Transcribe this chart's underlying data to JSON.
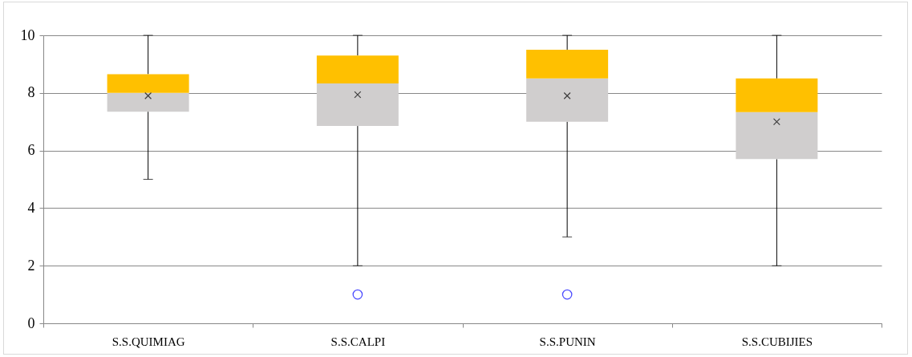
{
  "chart_data": {
    "type": "box",
    "categories": [
      "S.S.QUIMIAG",
      "S.S.CALPI",
      "S.S.PUNIN",
      "S.S.CUBIJIES"
    ],
    "boxes": [
      {
        "low": 5,
        "q1": 7.35,
        "median": 8,
        "q3": 8.65,
        "high": 10,
        "mean": 7.9
      },
      {
        "low": 2,
        "q1": 6.85,
        "median": 8.33,
        "q3": 9.3,
        "high": 10,
        "mean": 7.94,
        "outliers": [
          1
        ]
      },
      {
        "low": 3,
        "q1": 7,
        "median": 8.5,
        "q3": 9.5,
        "high": 10,
        "mean": 7.9,
        "outliers": [
          1
        ]
      },
      {
        "low": 2,
        "q1": 5.7,
        "median": 7.33,
        "q3": 8.5,
        "high": 10,
        "mean": 7
      }
    ],
    "ylim": [
      0,
      10
    ],
    "yticks": [
      0,
      2,
      4,
      6,
      8,
      10
    ],
    "grid": "y",
    "marker": "cross"
  }
}
